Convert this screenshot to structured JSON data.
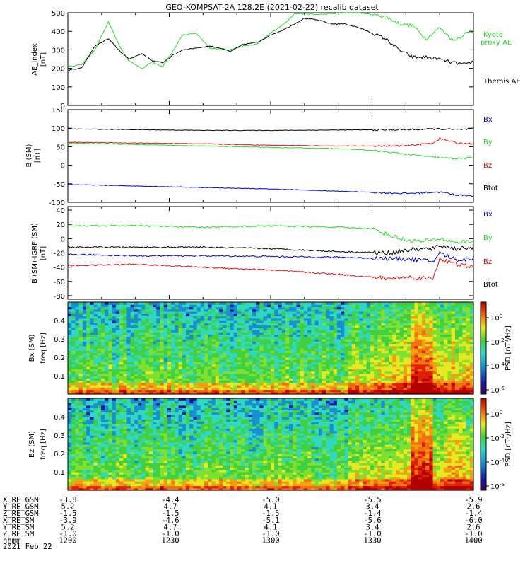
{
  "title": "GEO-KOMPSAT-2A 128.2E (2021-02-22) recalib dataset",
  "colors": {
    "black": "#000000",
    "green": "#22dd22",
    "red": "#dd1111",
    "blue": "#0000cc"
  },
  "chart_data": [
    {
      "type": "line",
      "panel": "ae",
      "ylabel": "AE_index",
      "yunit": "[nT]",
      "ylim": [
        0,
        500
      ],
      "yticks": [
        "0",
        "100",
        "200",
        "300",
        "400",
        "500"
      ],
      "x_hhmm_range": [
        1200,
        1400
      ],
      "series": [
        {
          "name": "Kyoto proxy AE",
          "color": "#22dd22",
          "x": [
            0,
            4,
            8,
            12,
            15,
            18,
            22,
            25,
            28,
            31,
            34,
            38,
            42,
            45,
            48,
            52,
            56,
            60,
            64,
            67,
            70,
            74,
            78,
            82,
            86,
            90,
            94,
            98,
            102,
            106,
            110,
            114,
            118,
            120
          ],
          "y": [
            210,
            220,
            300,
            450,
            330,
            240,
            200,
            235,
            210,
            290,
            380,
            390,
            310,
            300,
            300,
            320,
            330,
            390,
            440,
            495,
            495,
            490,
            495,
            500,
            500,
            490,
            480,
            440,
            430,
            360,
            420,
            350,
            390,
            400
          ]
        },
        {
          "name": "Themis AE",
          "color": "#000000",
          "x": [
            0,
            4,
            8,
            12,
            15,
            18,
            22,
            25,
            28,
            31,
            34,
            38,
            42,
            45,
            48,
            52,
            56,
            60,
            64,
            67,
            70,
            74,
            78,
            82,
            86,
            90,
            94,
            98,
            102,
            106,
            110,
            114,
            118,
            120
          ],
          "y": [
            190,
            200,
            320,
            360,
            300,
            250,
            280,
            240,
            230,
            270,
            300,
            310,
            320,
            310,
            290,
            330,
            340,
            380,
            410,
            440,
            470,
            460,
            440,
            440,
            420,
            390,
            360,
            300,
            260,
            260,
            250,
            230,
            220,
            240
          ]
        }
      ],
      "legend_labels": [
        "Kyoto",
        "proxy AE",
        "Themis AE"
      ]
    },
    {
      "type": "line",
      "panel": "b_sm",
      "ylabel": "B (SM)",
      "yunit": "[nT]",
      "ylim": [
        -100,
        150
      ],
      "yticks": [
        "-100",
        "-50",
        "0",
        "50",
        "100",
        "150"
      ],
      "series": [
        {
          "name": "Bx",
          "color": "#0000cc",
          "x": [
            0,
            20,
            40,
            60,
            80,
            100,
            110,
            115,
            120
          ],
          "y": [
            -52,
            -56,
            -60,
            -64,
            -70,
            -76,
            -72,
            -80,
            -82
          ]
        },
        {
          "name": "By",
          "color": "#22dd22",
          "x": [
            0,
            20,
            40,
            60,
            80,
            90,
            100,
            110,
            115,
            120
          ],
          "y": [
            60,
            56,
            52,
            48,
            45,
            40,
            30,
            20,
            18,
            20
          ]
        },
        {
          "name": "Bz",
          "color": "#dd1111",
          "x": [
            0,
            20,
            40,
            60,
            80,
            100,
            108,
            110,
            115,
            120
          ],
          "y": [
            62,
            60,
            58,
            54,
            52,
            52,
            60,
            72,
            60,
            58
          ]
        },
        {
          "name": "Btot",
          "color": "#000000",
          "x": [
            0,
            20,
            40,
            60,
            80,
            100,
            110,
            115,
            120
          ],
          "y": [
            98,
            96,
            94,
            94,
            95,
            96,
            98,
            96,
            98
          ]
        }
      ]
    },
    {
      "type": "line",
      "panel": "b_igrf",
      "ylabel": "B (SM)-IGRF (SM)",
      "yunit": "[nT]",
      "ylim": [
        -85,
        45
      ],
      "yticks": [
        "-80",
        "-60",
        "-40",
        "-20",
        "0",
        "20",
        "40"
      ],
      "series": [
        {
          "name": "Bx",
          "color": "#0000cc",
          "x": [
            0,
            20,
            40,
            60,
            80,
            95,
            100,
            108,
            110,
            115,
            120
          ],
          "y": [
            -22,
            -24,
            -24,
            -25,
            -26,
            -28,
            -28,
            -32,
            -20,
            -30,
            -28
          ]
        },
        {
          "name": "By",
          "color": "#22dd22",
          "x": [
            0,
            20,
            40,
            60,
            80,
            90,
            95,
            100,
            105,
            110,
            115,
            120
          ],
          "y": [
            18,
            18,
            16,
            18,
            16,
            14,
            5,
            -2,
            -4,
            0,
            -5,
            -4
          ]
        },
        {
          "name": "Bz",
          "color": "#dd1111",
          "x": [
            0,
            20,
            40,
            60,
            80,
            95,
            100,
            108,
            110,
            115,
            120
          ],
          "y": [
            -38,
            -36,
            -40,
            -44,
            -50,
            -56,
            -54,
            -56,
            -28,
            -36,
            -40
          ]
        },
        {
          "name": "Btot",
          "color": "#000000",
          "x": [
            0,
            20,
            40,
            60,
            80,
            95,
            100,
            108,
            110,
            115,
            120
          ],
          "y": [
            -12,
            -12,
            -12,
            -14,
            -18,
            -20,
            -16,
            -14,
            -10,
            -14,
            -12
          ]
        }
      ]
    },
    {
      "type": "heatmap",
      "panel": "psd_bx",
      "ylabel": "Bx (SM)",
      "yunit": "freq [Hz]",
      "ylim": [
        0,
        0.5
      ],
      "yticks": [
        "0.1",
        "0.2",
        "0.3",
        "0.4"
      ],
      "colorbar_label": "PSD [nT²/Hz]",
      "colorbar_ticks": [
        "10^0",
        "10^-2",
        "10^-4",
        "10^-6"
      ]
    },
    {
      "type": "heatmap",
      "panel": "psd_bz",
      "ylabel": "Bz (SM)",
      "yunit": "freq [Hz]",
      "ylim": [
        0,
        0.5
      ],
      "yticks": [
        "0.1",
        "0.2",
        "0.3",
        "0.4"
      ],
      "colorbar_label": "PSD [nT²/Hz]",
      "colorbar_ticks": [
        "10^0",
        "10^-2",
        "10^-4",
        "10^-6"
      ]
    }
  ],
  "panel_labels": {
    "ae_right": [
      "Kyoto",
      "proxy AE",
      "Themis AE"
    ],
    "b_right": [
      "Bx",
      "By",
      "Bz",
      "Btot"
    ]
  },
  "ephemeris": {
    "rows": [
      {
        "label": "X_RE_GSM",
        "values": [
          "-3.8",
          "-4.4",
          "-5.0",
          "-5.5",
          "-5.9"
        ]
      },
      {
        "label": "Y_RE_GSM",
        "values": [
          "5.2",
          "4.7",
          "4.1",
          "3.4",
          "2.6"
        ]
      },
      {
        "label": "Z_RE_GSM",
        "values": [
          "-1.5",
          "-1.5",
          "-1.5",
          "-1.4",
          "-1.4"
        ]
      },
      {
        "label": "X_RE_SM",
        "values": [
          "-3.9",
          "-4.6",
          "-5.1",
          "-5.6",
          "-6.0"
        ]
      },
      {
        "label": "Y_RE_SM",
        "values": [
          "5.2",
          "4.7",
          "4.1",
          "3.4",
          "2.6"
        ]
      },
      {
        "label": "Z_RE_SM",
        "values": [
          "-1.0",
          "-1.0",
          "-1.0",
          "-1.0",
          "-1.0"
        ]
      },
      {
        "label": "hhmm",
        "values": [
          "1200",
          "1230",
          "1300",
          "1330",
          "1400"
        ]
      }
    ],
    "date": "2021 Feb 22"
  }
}
